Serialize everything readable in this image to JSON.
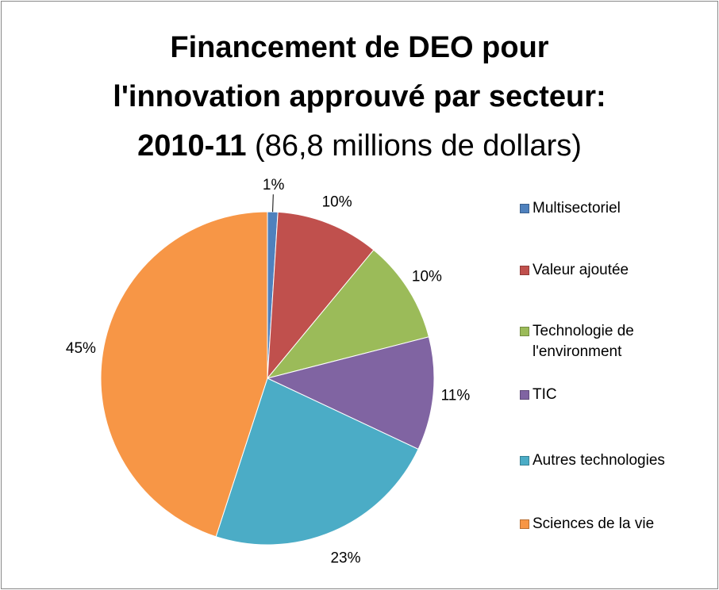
{
  "chart_data": {
    "type": "pie",
    "title": [
      "Financement de DEO pour",
      "l'innovation approuvé par secteur:",
      "2010-11"
    ],
    "subtitle": "(86,8 millions de dollars)",
    "categories": [
      "Multisectoriel",
      "Valeur ajoutée",
      "Technologie de l'environment",
      "TIC",
      "Autres technologies",
      "Sciences de la vie"
    ],
    "values": [
      1,
      10,
      10,
      11,
      23,
      45
    ],
    "value_labels": [
      "1%",
      "10%",
      "10%",
      "11%",
      "23%",
      "45%"
    ],
    "colors": [
      "#4f81bd",
      "#c0504d",
      "#9bbb59",
      "#8064a2",
      "#4bacc6",
      "#f79646"
    ],
    "legend": "right"
  }
}
